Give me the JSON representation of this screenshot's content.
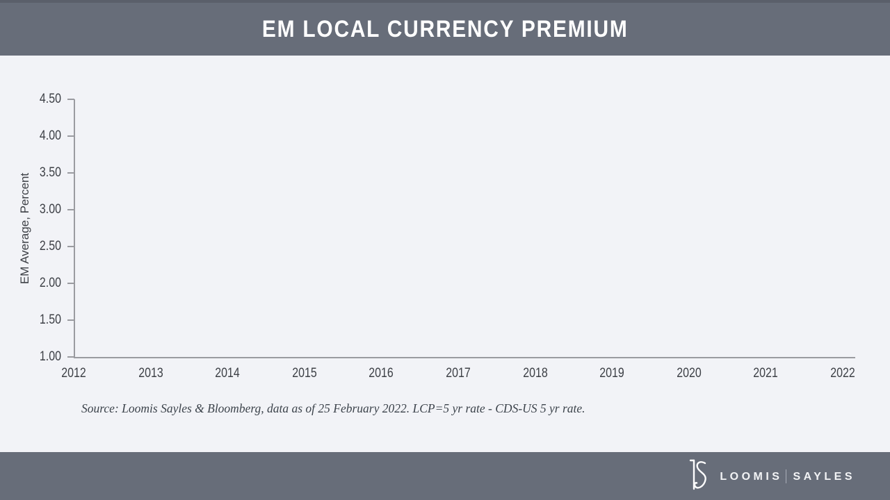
{
  "header": {
    "title": "EM LOCAL CURRENCY PREMIUM"
  },
  "chart": {
    "y_axis_label": "EM Average, Percent",
    "y_ticks": [
      "4.50",
      "4.00",
      "3.50",
      "3.00",
      "2.50",
      "2.00",
      "1.50",
      "1.00"
    ],
    "x_ticks": [
      "2012",
      "2013",
      "2014",
      "2015",
      "2016",
      "2017",
      "2018",
      "2019",
      "2020",
      "2021",
      "2022"
    ]
  },
  "source_note": "Source: Loomis Sayles & Bloomberg, data as of 25 February 2022. LCP=5 yr rate - CDS-US 5 yr rate.",
  "footer": {
    "brand_left": "LOOMIS",
    "brand_right": "SAYLES"
  },
  "colors": {
    "bar_background": "#676d79",
    "top_strip": "#5a5f6a",
    "page_background": "#f2f3f7",
    "axis_line": "#9a9ba0",
    "tick_text": "#3d4046",
    "source_text": "#3c434b",
    "brand_text": "#f2f3f5"
  },
  "chart_data": {
    "type": "line",
    "title": "EM LOCAL CURRENCY PREMIUM",
    "xlabel": "",
    "ylabel": "EM Average, Percent",
    "x_ticks": [
      "2012",
      "2013",
      "2014",
      "2015",
      "2016",
      "2017",
      "2018",
      "2019",
      "2020",
      "2021",
      "2022"
    ],
    "xlim": [
      2012,
      2022
    ],
    "ylim": [
      1.0,
      4.5
    ],
    "y_tick_step": 0.5,
    "grid": false,
    "legend": false,
    "series": []
  }
}
